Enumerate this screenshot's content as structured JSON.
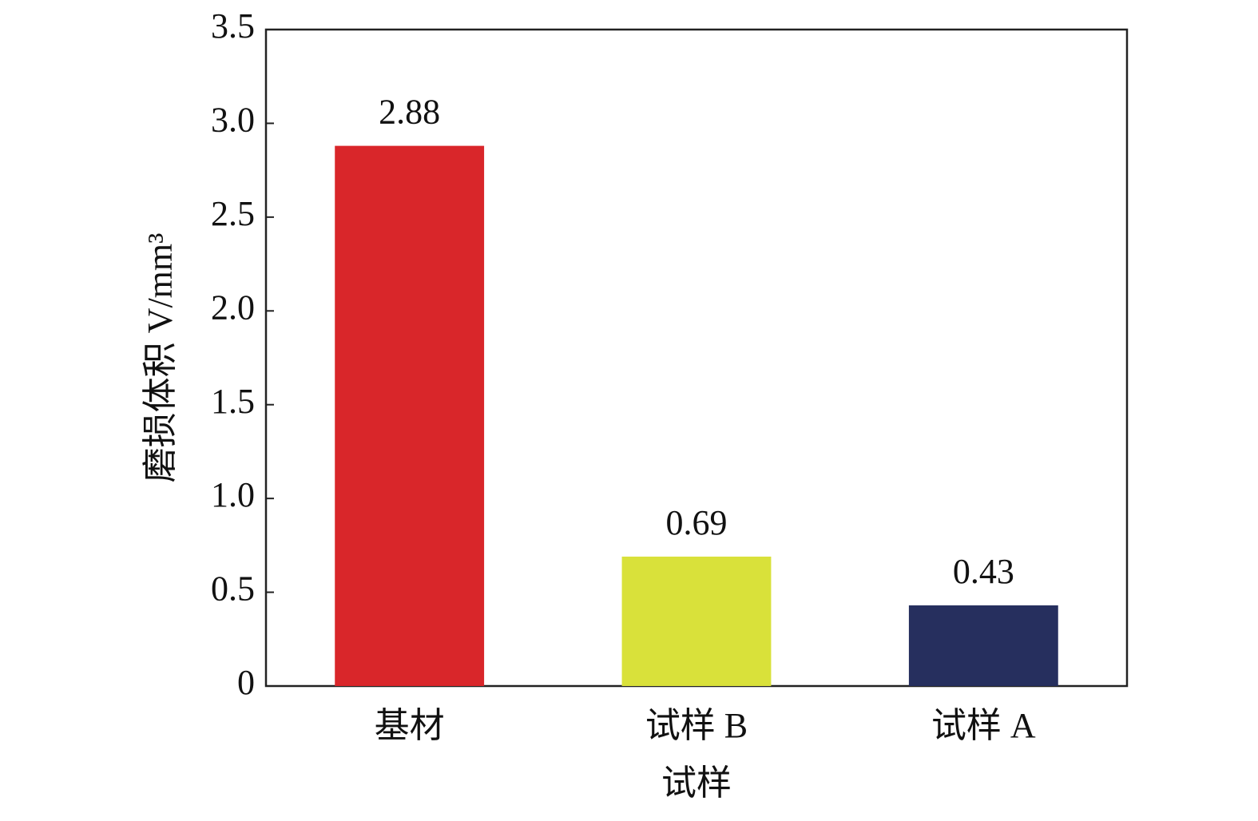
{
  "chart_data": {
    "type": "bar",
    "y_label": "磨损体积 V/mm³",
    "x_label": "试样",
    "categories": [
      "基材",
      "试样 B",
      "试样 A"
    ],
    "values": [
      2.88,
      0.69,
      0.43
    ],
    "colors": [
      "#d9262a",
      "#d9e13a",
      "#262f5e"
    ],
    "ylim": [
      0,
      3.5
    ],
    "yticks": [
      0,
      0.5,
      {
        "value": 1.0,
        "label": "1.0"
      },
      1.5,
      {
        "value": 2.0,
        "label": "2.0"
      },
      2.5,
      {
        "value": 3.0,
        "label": "3.0"
      },
      3.5
    ],
    "grid": false
  }
}
